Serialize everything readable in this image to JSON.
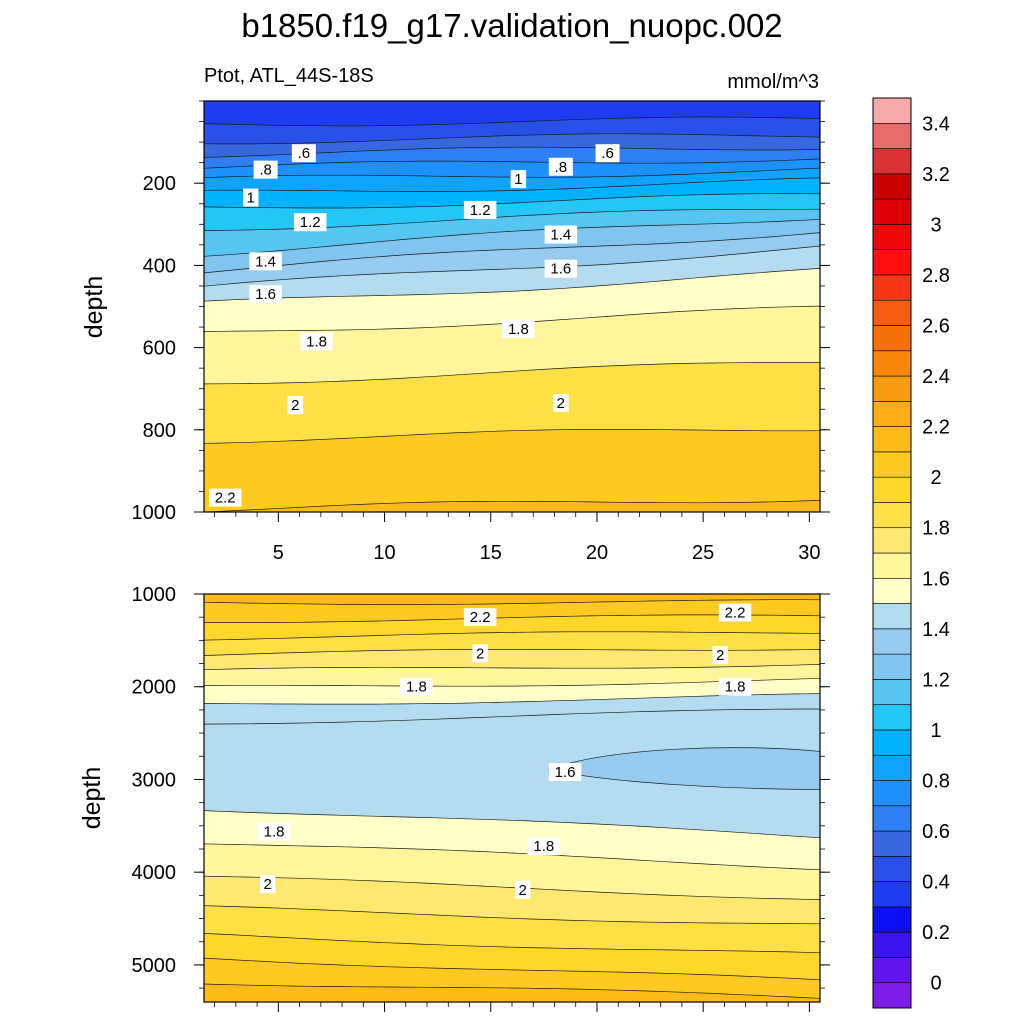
{
  "chart_data": {
    "type": "contour",
    "title": "b1850.f19_g17.validation_nuopc.002",
    "variable_label": "Ptot, ATL_44S-18S",
    "units_label": "mmol/m^3",
    "x_tick_labels": [
      "5",
      "10",
      "15",
      "20",
      "25",
      "30"
    ],
    "x_ticks": [
      5,
      10,
      15,
      20,
      25,
      30
    ],
    "xlim": [
      1.5,
      30.5
    ],
    "panels": [
      {
        "name": "upper",
        "ylabel": "depth",
        "ylim": [
          0,
          1000
        ],
        "y_ticks": [
          200,
          400,
          600,
          800,
          1000
        ],
        "y_tick_labels": [
          "200",
          "400",
          "600",
          "800",
          "1000"
        ],
        "contour_labels": [
          {
            "text": ".6",
            "x": 6.2,
            "depth": 127
          },
          {
            "text": ".6",
            "x": 20.5,
            "depth": 127
          },
          {
            "text": ".8",
            "x": 4.4,
            "depth": 167
          },
          {
            "text": ".8",
            "x": 18.3,
            "depth": 160
          },
          {
            "text": "1",
            "x": 3.7,
            "depth": 235
          },
          {
            "text": "1",
            "x": 16.3,
            "depth": 190
          },
          {
            "text": "1.2",
            "x": 6.5,
            "depth": 295
          },
          {
            "text": "1.2",
            "x": 14.5,
            "depth": 265
          },
          {
            "text": "1.4",
            "x": 4.4,
            "depth": 390
          },
          {
            "text": "1.4",
            "x": 18.3,
            "depth": 325
          },
          {
            "text": "1.6",
            "x": 4.4,
            "depth": 470
          },
          {
            "text": "1.6",
            "x": 18.3,
            "depth": 408
          },
          {
            "text": "1.8",
            "x": 6.8,
            "depth": 585
          },
          {
            "text": "1.8",
            "x": 16.3,
            "depth": 555
          },
          {
            "text": "2",
            "x": 5.8,
            "depth": 740
          },
          {
            "text": "2",
            "x": 18.3,
            "depth": 735
          },
          {
            "text": "2.2",
            "x": 2.5,
            "depth": 965
          }
        ]
      },
      {
        "name": "lower",
        "ylabel": "depth",
        "ylim": [
          1000,
          5400
        ],
        "y_ticks": [
          1000,
          2000,
          3000,
          4000,
          5000
        ],
        "y_tick_labels": [
          "1000",
          "2000",
          "3000",
          "4000",
          "5000"
        ],
        "contour_labels": [
          {
            "text": "2.2",
            "x": 14.5,
            "depth": 1250
          },
          {
            "text": "2.2",
            "x": 26.5,
            "depth": 1200
          },
          {
            "text": "2",
            "x": 14.5,
            "depth": 1640
          },
          {
            "text": "2",
            "x": 25.8,
            "depth": 1660
          },
          {
            "text": "1.8",
            "x": 4.8,
            "depth": 3560
          },
          {
            "text": "1.8",
            "x": 11.5,
            "depth": 2000
          },
          {
            "text": "1.8",
            "x": 17.5,
            "depth": 3720
          },
          {
            "text": "1.8",
            "x": 26.5,
            "depth": 2000
          },
          {
            "text": "1.6",
            "x": 18.5,
            "depth": 2920
          },
          {
            "text": "2",
            "x": 4.5,
            "depth": 4130
          },
          {
            "text": "2",
            "x": 16.5,
            "depth": 4190
          }
        ]
      }
    ],
    "colorbar": {
      "levels": [
        "0",
        "0.2",
        "0.4",
        "0.6",
        "0.8",
        "1",
        "1.2",
        "1.4",
        "1.6",
        "1.8",
        "2",
        "2.2",
        "2.4",
        "2.6",
        "2.8",
        "3",
        "3.2",
        "3.4"
      ],
      "level_values": [
        0,
        0.2,
        0.4,
        0.6,
        0.8,
        1.0,
        1.2,
        1.4,
        1.6,
        1.8,
        2.0,
        2.2,
        2.4,
        2.6,
        2.8,
        3.0,
        3.2,
        3.4
      ],
      "colors": [
        "#7f1eeb",
        "#6116f0",
        "#3b14ef",
        "#0d0ff5",
        "#1e3cf0",
        "#2a50ea",
        "#3868df",
        "#2f80f5",
        "#1e90ff",
        "#0fa3ff",
        "#00b2ff",
        "#22c6f7",
        "#55c6f2",
        "#80c5ef",
        "#96cbef",
        "#b4dcf0",
        "#ffffc8",
        "#fff59b",
        "#fee870",
        "#fde046",
        "#ffd72b",
        "#ffca1f",
        "#fdbb18",
        "#fdac14",
        "#fa9c0f",
        "#f8860b",
        "#f47008",
        "#f45d0f",
        "#f83718",
        "#ff0f0f",
        "#ee0808",
        "#de0006",
        "#c80000",
        "#d83232",
        "#e86c6c",
        "#f8aaaa"
      ]
    }
  }
}
